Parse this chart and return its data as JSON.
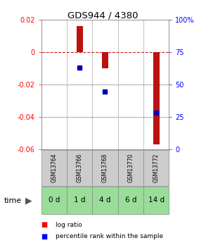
{
  "title": "GDS944 / 4380",
  "samples": [
    "GSM13764",
    "GSM13766",
    "GSM13768",
    "GSM13770",
    "GSM13772"
  ],
  "time_labels": [
    "0 d",
    "1 d",
    "4 d",
    "6 d",
    "14 d"
  ],
  "log_ratio": [
    0.0,
    0.016,
    -0.01,
    0.0,
    -0.057
  ],
  "percentile_rank": [
    null,
    0.63,
    0.445,
    null,
    0.285
  ],
  "ylim_left": [
    -0.06,
    0.02
  ],
  "ylim_right": [
    0.0,
    1.0
  ],
  "yticks_left": [
    0.02,
    0.0,
    -0.02,
    -0.04,
    -0.06
  ],
  "ytick_labels_left": [
    "0.02",
    "0",
    "-0.02",
    "-0.04",
    "-0.06"
  ],
  "yticks_right": [
    1.0,
    0.75,
    0.5,
    0.25,
    0.0
  ],
  "ytick_labels_right": [
    "100%",
    "75",
    "50",
    "25",
    "0"
  ],
  "bar_color": "#bb1111",
  "dot_color": "#0000bb",
  "bar_width": 0.25,
  "zero_line_color": "#cc2222",
  "gsm_row_color": "#cccccc",
  "time_row_color": "#99dd99",
  "legend_bar_label": "log ratio",
  "legend_dot_label": "percentile rank within the sample"
}
